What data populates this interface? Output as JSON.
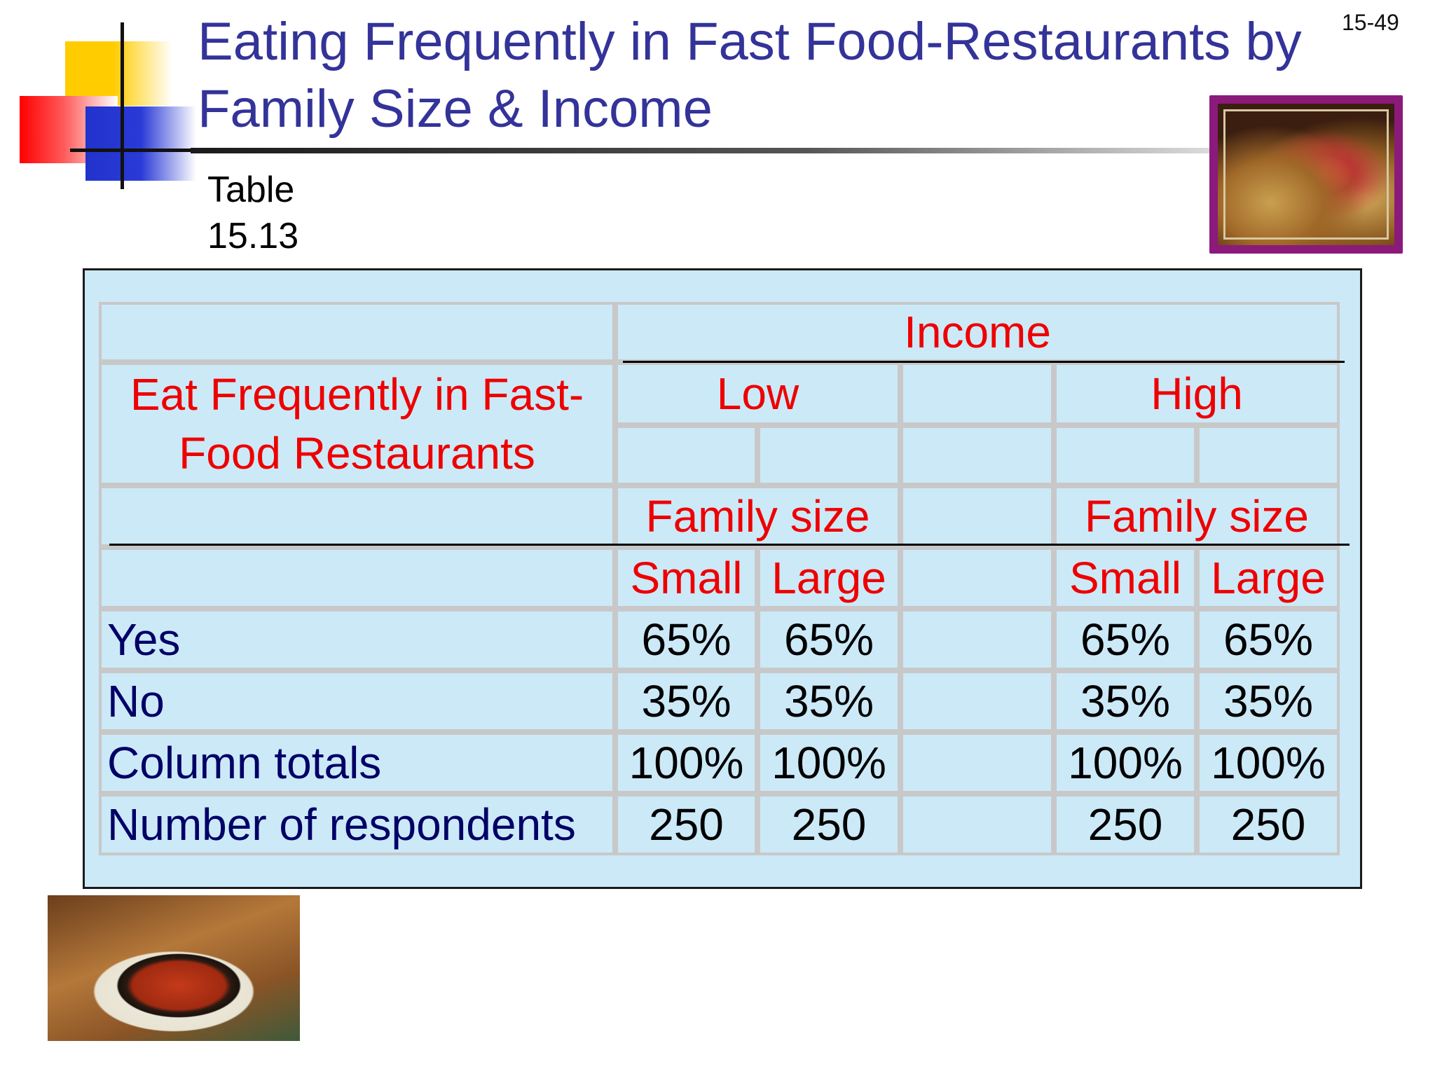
{
  "slide": {
    "title": "Eating Frequently in Fast Food-Restaurants by Family Size & Income",
    "number": "15-49",
    "table_label": "Table 15.13"
  },
  "table": {
    "group_header": "Income",
    "row_header": "Eat Frequently in Fast-Food Restaurants",
    "income_levels": [
      "Low",
      "High"
    ],
    "subgroup_label": "Family size",
    "family_sizes": [
      "Small",
      "Large"
    ],
    "rows": [
      {
        "label": "Yes",
        "values": [
          "65%",
          "65%",
          "65%",
          "65%"
        ]
      },
      {
        "label": "No",
        "values": [
          "35%",
          "35%",
          "35%",
          "35%"
        ]
      },
      {
        "label": "Column totals",
        "values": [
          "100%",
          "100%",
          "100%",
          "100%"
        ]
      },
      {
        "label": "Number of respondents",
        "values": [
          "250",
          "250",
          "250",
          "250"
        ]
      }
    ]
  },
  "images": {
    "top_right": "tacos-photo",
    "bottom_left": "pizza-photo"
  },
  "colors": {
    "title": "#333399",
    "header_text": "#ee0000",
    "row_label_text": "#000066",
    "panel_background": "#cce9f8",
    "image_frame": "#8b1a7a"
  }
}
